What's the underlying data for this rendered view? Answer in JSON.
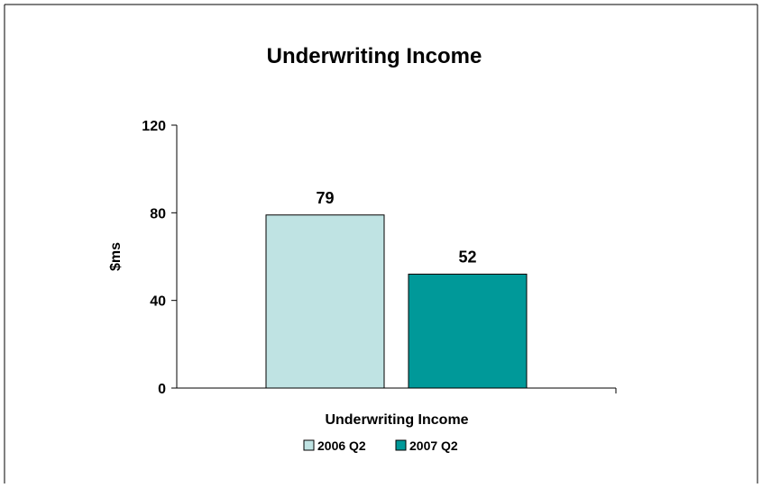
{
  "chart_data": {
    "type": "bar",
    "title": "Underwriting Income",
    "xlabel": "Underwriting Income",
    "ylabel": "$ms",
    "categories": [
      "Underwriting Income"
    ],
    "series": [
      {
        "name": "2006 Q2",
        "values": [
          79
        ],
        "color": "#bfe3e3"
      },
      {
        "name": "2007 Q2",
        "values": [
          52
        ],
        "color": "#009999"
      }
    ],
    "ylim": [
      0,
      120
    ],
    "yticks": [
      "0",
      "40",
      "80",
      "120"
    ],
    "grid": false,
    "legend": "bottom"
  }
}
